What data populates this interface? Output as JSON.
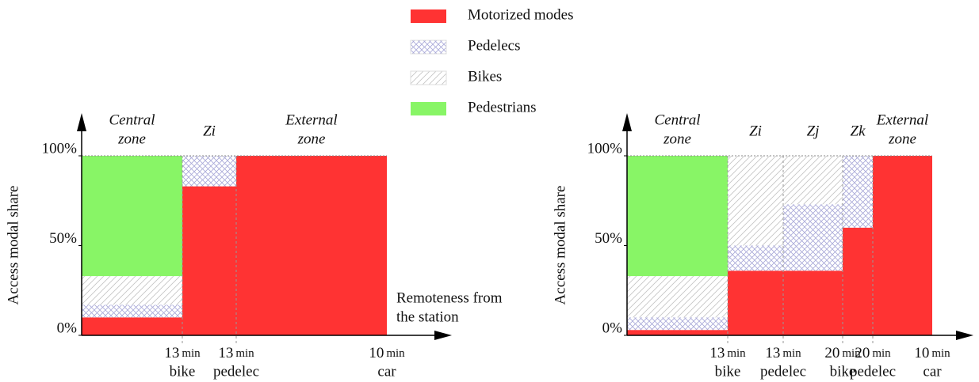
{
  "series": [
    {
      "name": "Motorized modes",
      "color": "#ff3333",
      "fill": "solid"
    },
    {
      "name": "Pedelecs",
      "color": "#a8a8d8",
      "fill": "crosshatch"
    },
    {
      "name": "Bikes",
      "color": "#c4c4c4",
      "fill": "diagonal"
    },
    {
      "name": "Pedestrians",
      "color": "#88f566",
      "fill": "solid"
    }
  ],
  "chart_data": [
    {
      "type": "stacked-column",
      "ylabel": "Access modal share",
      "xlabel": [
        "Remoteness from",
        "the station"
      ],
      "ylim": [
        0,
        100
      ],
      "yticks": [
        {
          "value": 0,
          "label": "0%"
        },
        {
          "value": 50,
          "label": "50%"
        },
        {
          "value": 100,
          "label": "100%"
        }
      ],
      "columns": [
        [
          "Central",
          "zone"
        ],
        [
          "Zi"
        ],
        [
          "External",
          "zone"
        ]
      ],
      "xticks": [
        {
          "time": "13",
          "unit": "min",
          "mode": "bike"
        },
        {
          "time": "13",
          "unit": "min",
          "mode": "pedelec"
        },
        {
          "time": "10",
          "unit": "min",
          "mode": "car"
        }
      ],
      "values": [
        [
          10,
          83,
          100
        ],
        [
          7,
          17,
          0
        ],
        [
          16,
          0,
          0
        ],
        [
          67,
          0,
          0
        ]
      ]
    },
    {
      "type": "stacked-column",
      "ylabel": "Access modal share",
      "ylim": [
        0,
        100
      ],
      "yticks": [
        {
          "value": 0,
          "label": "0%"
        },
        {
          "value": 50,
          "label": "50%"
        },
        {
          "value": 100,
          "label": "100%"
        }
      ],
      "columns": [
        [
          "Central",
          "zone"
        ],
        [
          "Zi"
        ],
        [
          "Zj"
        ],
        [
          "Zk"
        ],
        [
          "External",
          "zone"
        ]
      ],
      "xticks": [
        {
          "time": "13",
          "unit": "min",
          "mode": "bike"
        },
        {
          "time": "13",
          "unit": "min",
          "mode": "pedelec"
        },
        {
          "time": "20",
          "unit": "min",
          "mode": "bike"
        },
        {
          "time": "20",
          "unit": "min",
          "mode": "pedelec"
        },
        {
          "time": "10",
          "unit": "min",
          "mode": "car"
        }
      ],
      "values": [
        [
          3,
          36,
          36,
          60,
          100
        ],
        [
          7,
          14,
          37,
          40,
          0
        ],
        [
          23,
          50,
          27,
          0,
          0
        ],
        [
          67,
          0,
          0,
          0,
          0
        ]
      ]
    }
  ]
}
